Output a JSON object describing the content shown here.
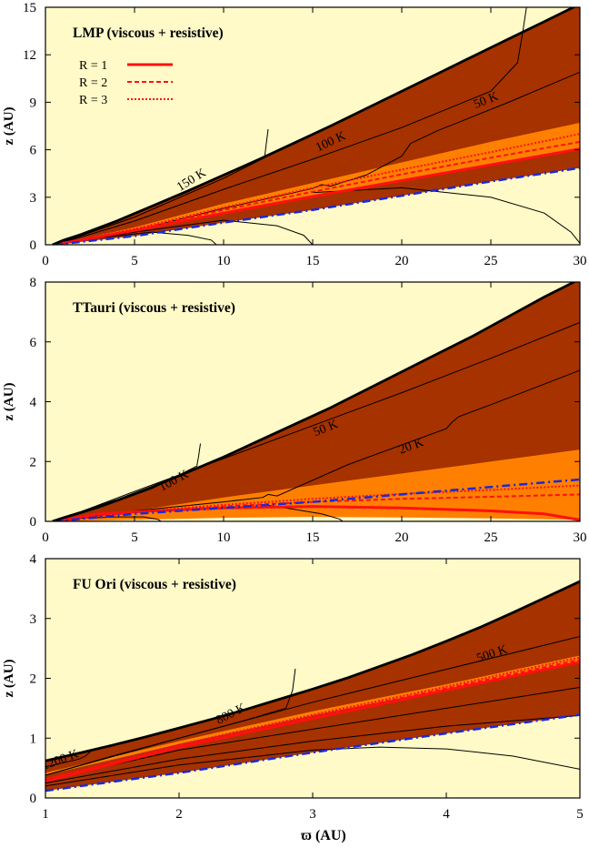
{
  "colors": {
    "cold_yellow": "#fffac8",
    "dark_brown": "#a63200",
    "orange_band": "#ff8000",
    "surface_line": "#000000",
    "contour": "#000000",
    "blue_dashdot": "#1a2ad8",
    "red_R": "#ff1010"
  },
  "x_axis_label": "ϖ (AU)",
  "legend": {
    "entries": [
      {
        "label": "R = 1",
        "style": "solid"
      },
      {
        "label": "R = 2",
        "style": "dashed"
      },
      {
        "label": "R = 3",
        "style": "dotted"
      }
    ]
  },
  "chart_data": [
    {
      "type": "area",
      "title": "LMP (viscous + resistive)",
      "xlabel": "",
      "ylabel": "z (AU)",
      "xlim": [
        0,
        30
      ],
      "ylim": [
        0,
        15
      ],
      "xticks": [
        0,
        5,
        10,
        15,
        20,
        25,
        30
      ],
      "yticks": [
        0,
        3,
        6,
        9,
        12,
        15
      ],
      "xtick_labels": [
        "0",
        "5",
        "10",
        "15",
        "20",
        "25",
        "30"
      ],
      "ytick_labels": [
        "0",
        "3",
        "6",
        "9",
        "12",
        "15"
      ],
      "surface": {
        "x": [
          0.4,
          1,
          2,
          4,
          6,
          8,
          10,
          12,
          14,
          16,
          18,
          20,
          22,
          24,
          26,
          28,
          30
        ],
        "y": [
          0,
          0.28,
          0.65,
          1.5,
          2.45,
          3.4,
          4.4,
          5.4,
          6.45,
          7.5,
          8.6,
          9.7,
          10.8,
          11.9,
          13.0,
          14.1,
          15.2
        ]
      },
      "orange_top": {
        "x": [
          0.5,
          5,
          10,
          15,
          20,
          25,
          30
        ],
        "y": [
          0,
          1.1,
          2.6,
          3.9,
          5.2,
          6.5,
          7.7
        ]
      },
      "orange_bottom": {
        "x": [
          0.5,
          5,
          10,
          15,
          20,
          25,
          30
        ],
        "y": [
          0,
          0.85,
          1.95,
          3.0,
          4.0,
          5.0,
          6.0
        ]
      },
      "r_lines": [
        {
          "name": "R = 1",
          "x": [
            0.5,
            5,
            10,
            15,
            20,
            25,
            30
          ],
          "y": [
            0,
            0.9,
            2.0,
            3.05,
            4.05,
            5.05,
            6.05
          ]
        },
        {
          "name": "R = 2",
          "x": [
            0.5,
            5,
            10,
            15,
            20,
            25,
            30
          ],
          "y": [
            0,
            0.95,
            2.2,
            3.35,
            4.45,
            5.5,
            6.5
          ]
        },
        {
          "name": "R = 3",
          "x": [
            0.5,
            5,
            10,
            15,
            20,
            25,
            30
          ],
          "y": [
            0,
            1.0,
            2.35,
            3.6,
            4.75,
            5.85,
            7.0
          ]
        }
      ],
      "blue_line": {
        "x": [
          0.5,
          5,
          10,
          15,
          20,
          25,
          30
        ],
        "y": [
          0,
          0.55,
          1.4,
          2.2,
          3.1,
          4.0,
          4.85
        ]
      },
      "contours": [
        {
          "x": [
            0.6,
            5,
            10,
            12.3,
            12.4,
            12.5
          ],
          "y": [
            0.02,
            1.75,
            4.2,
            5.5,
            6.4,
            7.3
          ]
        },
        {
          "x": [
            0.6,
            5,
            10,
            15,
            20,
            25,
            26.5,
            26.8,
            27.0
          ],
          "y": [
            0.02,
            1.5,
            3.5,
            5.4,
            7.4,
            9.7,
            11.5,
            13.5,
            15
          ]
        },
        {
          "x": [
            0.6,
            5,
            10,
            15,
            15.5,
            16,
            18,
            20,
            20.5,
            22,
            26,
            30
          ],
          "y": [
            0.02,
            0.9,
            2.3,
            3.55,
            3.8,
            3.7,
            4.4,
            5.6,
            6.4,
            7.2,
            9.0,
            10.9
          ]
        },
        {
          "x": [
            0.6,
            3,
            6,
            8,
            9.3,
            9.6
          ],
          "y": [
            0.02,
            0.45,
            0.8,
            0.6,
            0.3,
            0
          ]
        },
        {
          "x": [
            0.6,
            5,
            10,
            13,
            14.5,
            15
          ],
          "y": [
            0.02,
            0.8,
            1.55,
            1.2,
            0.6,
            0
          ]
        },
        {
          "x": [
            15,
            20,
            25,
            28,
            29.5,
            30
          ],
          "y": [
            3.3,
            3.6,
            3.0,
            2.0,
            0.8,
            0.1
          ]
        }
      ],
      "contour_labels": [
        {
          "text": "150 K",
          "x": 8.3,
          "y": 3.9,
          "angle": -32
        },
        {
          "text": "100 K",
          "x": 16.1,
          "y": 6.3,
          "angle": -25
        },
        {
          "text": "50 K",
          "x": 24.8,
          "y": 8.9,
          "angle": -22
        }
      ]
    },
    {
      "type": "area",
      "title": "TTauri (viscous + resistive)",
      "xlabel": "",
      "ylabel": "z (AU)",
      "xlim": [
        0,
        30
      ],
      "ylim": [
        0,
        8
      ],
      "xticks": [
        0,
        5,
        10,
        15,
        20,
        25,
        30
      ],
      "yticks": [
        0,
        2,
        4,
        6,
        8
      ],
      "xtick_labels": [
        "0",
        "5",
        "10",
        "15",
        "20",
        "25",
        "30"
      ],
      "ytick_labels": [
        "0",
        "2",
        "4",
        "6",
        "8"
      ],
      "surface": {
        "x": [
          0.4,
          1,
          2,
          4,
          6,
          8,
          10,
          12,
          14,
          16,
          18,
          20,
          22,
          24,
          26,
          28,
          30
        ],
        "y": [
          0,
          0.12,
          0.3,
          0.7,
          1.15,
          1.65,
          2.15,
          2.7,
          3.25,
          3.8,
          4.4,
          5.0,
          5.6,
          6.2,
          6.85,
          7.5,
          8.1
        ]
      },
      "orange_top": {
        "x": [
          0.5,
          5,
          10,
          15,
          20,
          25,
          30
        ],
        "y": [
          0,
          0.35,
          0.8,
          1.2,
          1.6,
          2.0,
          2.4
        ]
      },
      "orange_bottom": {
        "x": [
          0.5,
          5,
          10,
          15,
          20,
          25,
          30
        ],
        "y": [
          0,
          0.05,
          0.12,
          0.15,
          0.13,
          0.1,
          0.05
        ]
      },
      "r_lines": [
        {
          "name": "R = 1",
          "x": [
            0.5,
            3,
            6,
            10,
            15,
            20,
            25,
            28,
            30
          ],
          "y": [
            0,
            0.25,
            0.35,
            0.45,
            0.5,
            0.45,
            0.35,
            0.25,
            0.05
          ]
        },
        {
          "name": "R = 2",
          "x": [
            0.5,
            5,
            10,
            15,
            20,
            25,
            30
          ],
          "y": [
            0,
            0.3,
            0.5,
            0.65,
            0.75,
            0.82,
            0.9
          ]
        },
        {
          "name": "R = 3",
          "x": [
            0.5,
            5,
            10,
            15,
            20,
            25,
            30
          ],
          "y": [
            0,
            0.32,
            0.55,
            0.75,
            0.92,
            1.05,
            1.2
          ]
        }
      ],
      "blue_line": {
        "x": [
          0.5,
          5,
          10,
          15,
          20,
          25,
          30
        ],
        "y": [
          0,
          0.25,
          0.45,
          0.65,
          0.9,
          1.15,
          1.4
        ]
      },
      "contours": [
        {
          "x": [
            0.6,
            3,
            6,
            8.5,
            8.6,
            8.7
          ],
          "y": [
            0.01,
            0.45,
            1.1,
            1.85,
            2.2,
            2.6
          ]
        },
        {
          "x": [
            0.6,
            5,
            10,
            15,
            20,
            25,
            30
          ],
          "y": [
            0.01,
            1.0,
            2.1,
            3.2,
            4.3,
            5.45,
            6.65
          ]
        },
        {
          "x": [
            0.6,
            5,
            10,
            12.2,
            12.5,
            13,
            17,
            22.5,
            22.8,
            23.2,
            25,
            30
          ],
          "y": [
            0.01,
            0.35,
            0.65,
            0.8,
            0.9,
            0.85,
            1.9,
            3.1,
            3.3,
            3.5,
            3.9,
            5.05
          ]
        },
        {
          "x": [
            0.6,
            2,
            4,
            5.5,
            6.3,
            6.5
          ],
          "y": [
            0.01,
            0.1,
            0.15,
            0.15,
            0.07,
            0
          ]
        },
        {
          "x": [
            12.3,
            14,
            15.5,
            16.5,
            16.7
          ],
          "y": [
            0.55,
            0.4,
            0.25,
            0.08,
            0
          ]
        }
      ],
      "contour_labels": [
        {
          "text": "100 K",
          "x": 7.3,
          "y": 1.25,
          "angle": -28
        },
        {
          "text": "50 K",
          "x": 15.8,
          "y": 3.0,
          "angle": -22
        },
        {
          "text": "20 K",
          "x": 20.6,
          "y": 2.4,
          "angle": -20
        }
      ]
    },
    {
      "type": "area",
      "title": "FU Ori (viscous + resistive)",
      "xlabel": "ϖ (AU)",
      "ylabel": "z (AU)",
      "xlim": [
        1,
        5
      ],
      "ylim": [
        0,
        4
      ],
      "xticks": [
        1,
        2,
        3,
        4,
        5
      ],
      "yticks": [
        0,
        1,
        2,
        3,
        4
      ],
      "xtick_labels": [
        "1",
        "2",
        "3",
        "4",
        "5"
      ],
      "ytick_labels": [
        "0",
        "1",
        "2",
        "3",
        "4"
      ],
      "surface": {
        "x": [
          1.0,
          1.25,
          1.5,
          1.75,
          2.0,
          2.25,
          2.5,
          2.75,
          3.0,
          3.25,
          3.5,
          3.75,
          4.0,
          4.25,
          4.5,
          4.75,
          5.0
        ],
        "y": [
          0.62,
          0.75,
          0.88,
          1.02,
          1.17,
          1.32,
          1.48,
          1.65,
          1.82,
          2.0,
          2.2,
          2.4,
          2.62,
          2.85,
          3.1,
          3.36,
          3.62
        ]
      },
      "orange_top": {
        "x": [
          1.0,
          2.0,
          3.0,
          4.0,
          5.0
        ],
        "y": [
          0.42,
          0.95,
          1.45,
          1.9,
          2.38
        ]
      },
      "orange_bottom": {
        "x": [
          1.0,
          2.0,
          3.0,
          4.0,
          5.0
        ],
        "y": [
          0.38,
          0.9,
          1.38,
          1.82,
          2.28
        ]
      },
      "r_lines": [
        {
          "name": "R = 1",
          "x": [
            1.0,
            2.0,
            3.0,
            4.0,
            5.0
          ],
          "y": [
            0.28,
            0.85,
            1.33,
            1.8,
            2.27
          ]
        },
        {
          "name": "R = 2",
          "x": [
            1.0,
            2.0,
            3.0,
            4.0,
            5.0
          ],
          "y": [
            0.3,
            0.87,
            1.36,
            1.83,
            2.31
          ]
        },
        {
          "name": "R = 3",
          "x": [
            1.0,
            2.0,
            3.0,
            4.0,
            5.0
          ],
          "y": [
            0.32,
            0.89,
            1.39,
            1.86,
            2.35
          ]
        }
      ],
      "blue_line": {
        "x": [
          1.0,
          2.0,
          3.0,
          4.0,
          5.0
        ],
        "y": [
          0.12,
          0.42,
          0.76,
          1.08,
          1.39
        ]
      },
      "contours": [
        {
          "x": [
            1.0,
            1.1,
            1.25,
            1.3,
            1.32,
            1.35
          ],
          "y": [
            0.52,
            0.57,
            0.65,
            0.7,
            0.74,
            0.8
          ]
        },
        {
          "x": [
            1.0,
            1.5,
            2.0,
            2.5,
            2.8,
            2.85,
            2.87
          ],
          "y": [
            0.38,
            0.7,
            1.0,
            1.3,
            1.5,
            1.8,
            2.16
          ]
        },
        {
          "x": [
            1.0,
            2.0,
            3.0,
            4.0,
            5.0
          ],
          "y": [
            0.38,
            1.0,
            1.6,
            2.15,
            2.7
          ]
        },
        {
          "x": [
            1.0,
            2.0,
            3.0,
            4.0,
            5.0
          ],
          "y": [
            0.3,
            0.8,
            1.15,
            1.5,
            1.85
          ]
        },
        {
          "x": [
            1.0,
            2.0,
            3.0,
            4.0,
            5.0
          ],
          "y": [
            0.25,
            0.65,
            0.95,
            1.2,
            1.38
          ]
        },
        {
          "x": [
            1.0,
            2.0,
            3.0,
            3.5,
            4.0,
            4.5,
            5.0
          ],
          "y": [
            0.2,
            0.55,
            0.8,
            0.85,
            0.82,
            0.7,
            0.48
          ]
        }
      ],
      "contour_labels": [
        {
          "text": "1200 K",
          "x": 1.12,
          "y": 0.58,
          "angle": -20
        },
        {
          "text": "800 K",
          "x": 2.4,
          "y": 1.35,
          "angle": -27
        },
        {
          "text": "500 K",
          "x": 4.35,
          "y": 2.35,
          "angle": -18
        }
      ]
    }
  ]
}
